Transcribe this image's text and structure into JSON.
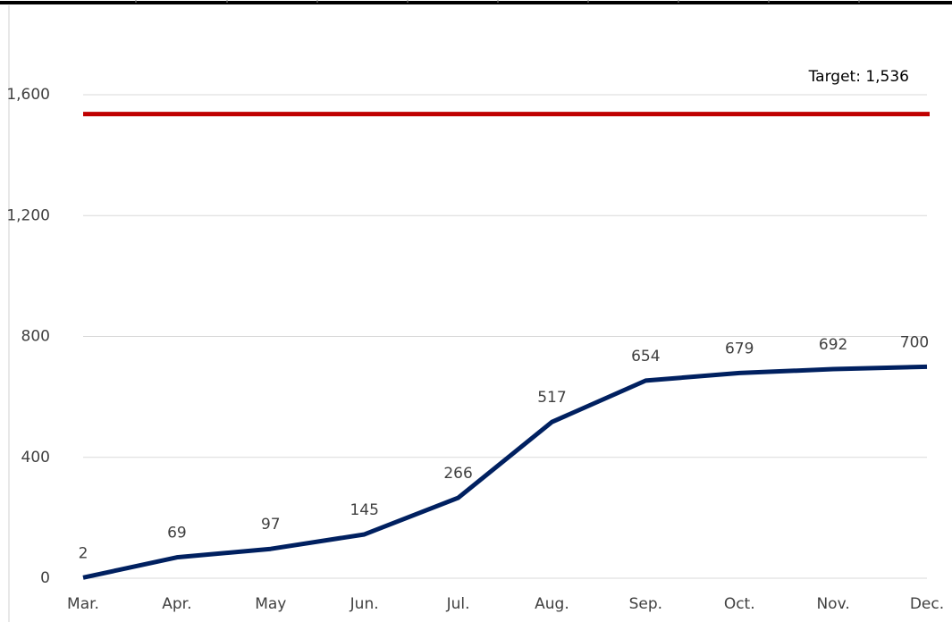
{
  "chart_data": {
    "type": "line",
    "categories": [
      "Mar.",
      "Apr.",
      "May",
      "Jun.",
      "Jul.",
      "Aug.",
      "Sep.",
      "Oct.",
      "Nov.",
      "Dec."
    ],
    "series": [
      {
        "color": "#002060",
        "values": [
          2,
          69,
          97,
          145,
          266,
          517,
          654,
          679,
          692,
          700
        ]
      }
    ],
    "target": {
      "value": 1536,
      "label": "Target: 1,536",
      "color": "#c00000"
    },
    "ylim": [
      0,
      1800
    ],
    "yticks": [
      0,
      400,
      800,
      {
        "value": 1200,
        "label": "1,200"
      },
      {
        "value": 1600,
        "label": "1,600"
      }
    ],
    "grid": true
  }
}
